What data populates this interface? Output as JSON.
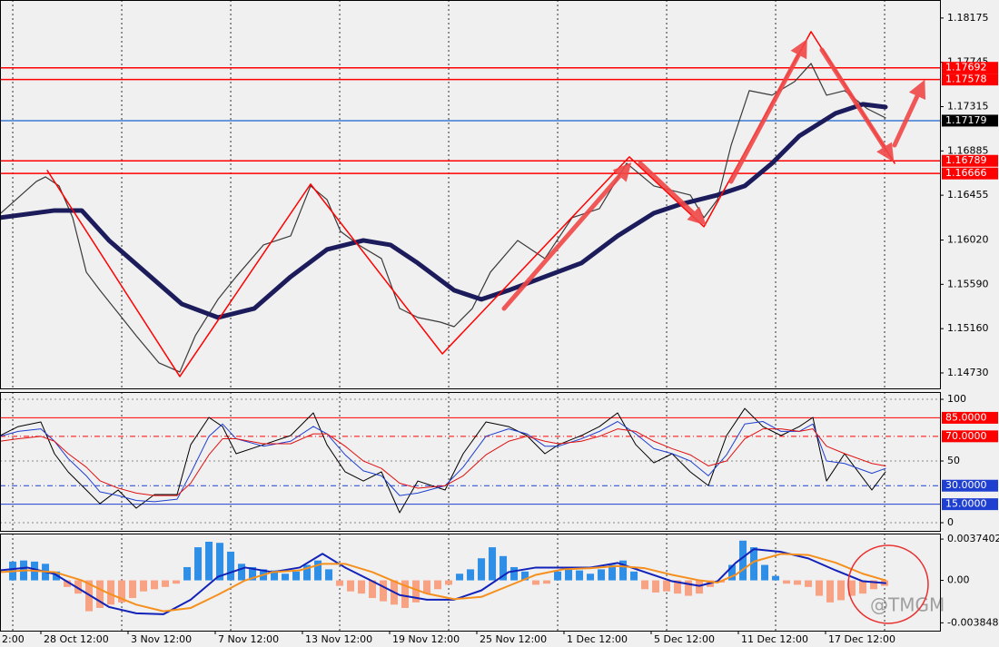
{
  "chart_data": [
    {
      "type": "line",
      "xlim": [
        -1.17,
        85.08
      ],
      "ylim": [
        1.1458,
        1.1835
      ],
      "xgrid": [
        0,
        10,
        20,
        30,
        40,
        50,
        60,
        70,
        80
      ],
      "yticks": [
        1.18175,
        1.17745,
        1.17315,
        1.16885,
        1.16455,
        {
          "value": 1.1602,
          "label": "1.16020"
        },
        {
          "value": 1.1559,
          "label": "1.15590"
        },
        {
          "value": 1.1516,
          "label": "1.15160"
        },
        {
          "value": 1.1473,
          "label": "1.14730"
        }
      ],
      "levels": [
        {
          "value": 1.17692,
          "color": "#ff0000",
          "label_color": "#ff0000"
        },
        {
          "value": 1.17578,
          "color": "#ff0000",
          "label_color": "#ff0000"
        },
        {
          "value": 1.17179,
          "color": "#3a7bd5",
          "label_color": "#000000"
        },
        {
          "value": 1.16789,
          "color": "#ff0000",
          "label_color": "#ff0000"
        },
        {
          "value": 1.16666,
          "color": "#ff0000",
          "label_color": "#ff0000"
        }
      ],
      "series": [
        {
          "color": "#3a3a3a",
          "width": 1.2,
          "x": [
            -1.1,
            2.17,
            3,
            4.25,
            5.5,
            6.75,
            8,
            9.67,
            11.33,
            13.42,
            15.33,
            16.75,
            18.83,
            20.5,
            23,
            25.5,
            27.33,
            28.83,
            30.08,
            31.75,
            33.83,
            35.5,
            37.17,
            39.25,
            40.5,
            42.17,
            43.83,
            46.33,
            48.83,
            51.33,
            53.83,
            56.33,
            58.83,
            60.5,
            62.17,
            63.42,
            64.67,
            65.92,
            67.58,
            69.67,
            71.75,
            73.25,
            74.67,
            76.33,
            78.42,
            80.08
          ],
          "values": [
            1.16281,
            1.16589,
            1.16633,
            1.16545,
            1.16237,
            1.15708,
            1.15532,
            1.15312,
            1.15091,
            1.14827,
            1.14739,
            1.15091,
            1.15444,
            1.15664,
            1.15972,
            1.1606,
            1.16545,
            1.16413,
            1.16104,
            1.15972,
            1.1584,
            1.15356,
            1.15268,
            1.15223,
            1.15179,
            1.15356,
            1.15708,
            1.16016,
            1.1584,
            1.16237,
            1.16325,
            1.16765,
            1.16545,
            1.16501,
            1.16457,
            1.16237,
            1.16413,
            1.16941,
            1.1747,
            1.17426,
            1.17558,
            1.17734,
            1.17426,
            1.1747,
            1.17294,
            1.17206
          ]
        },
        {
          "color": "#1c1c5c",
          "width": 5,
          "x": [
            -1.17,
            3.83,
            6.33,
            8.83,
            12.17,
            15.5,
            18.83,
            22.17,
            25.5,
            28.83,
            32.17,
            34.67,
            37.17,
            40.5,
            43,
            45.5,
            48.83,
            52.17,
            55.5,
            58.83,
            61.33,
            64.67,
            67.17,
            69.67,
            72.17,
            75.5,
            78,
            80.08
          ],
          "values": [
            1.16237,
            1.16307,
            1.16307,
            1.16016,
            1.15708,
            1.154,
            1.15268,
            1.15356,
            1.15664,
            1.15928,
            1.16016,
            1.15972,
            1.15796,
            1.15532,
            1.15444,
            1.15532,
            1.15664,
            1.15796,
            1.1606,
            1.16281,
            1.16369,
            1.16457,
            1.16545,
            1.16765,
            1.1703,
            1.1725,
            1.17338,
            1.17311
          ]
        },
        {
          "color": "#ff0000",
          "width": 1.5,
          "x": [
            3.17,
            15.33,
            27.33,
            39.42,
            56.58,
            63.42,
            73.25,
            80.92
          ],
          "values": [
            1.16695,
            1.14695,
            1.16563,
            1.14915,
            1.16827,
            1.16149,
            1.18043,
            1.16765
          ]
        }
      ]
    },
    {
      "type": "line",
      "xlim": [
        -1.17,
        85.08
      ],
      "ylim": [
        -6.6,
        105.9
      ],
      "yticks": [
        100,
        50,
        0
      ],
      "levels": [
        {
          "value": 85,
          "label": "85.0000",
          "color": "#ff0000",
          "dash": "none"
        },
        {
          "value": 70,
          "label": "70.0000",
          "color": "#ff0000",
          "dash": "6 3 1 3"
        },
        {
          "value": 30,
          "label": "30.0000",
          "color": "#1f3fd0",
          "dash": "6 3 1 3"
        },
        {
          "value": 15,
          "label": "15.0000",
          "color": "#1f3fd0",
          "dash": "none"
        }
      ],
      "series": [
        {
          "color": "#000000",
          "width": 1,
          "x": [
            -1.17,
            0.5,
            2.58,
            3.83,
            5.08,
            6.75,
            8,
            9.67,
            11.33,
            13,
            15.08,
            16.33,
            18,
            19.25,
            20.5,
            23,
            25.5,
            27.58,
            28.83,
            30.5,
            32.17,
            33.83,
            35.5,
            37.17,
            39.67,
            41.33,
            43.42,
            45.5,
            47.17,
            48.83,
            50.08,
            52.17,
            53.83,
            55.5,
            57.17,
            58.83,
            60.5,
            62.17,
            63.83,
            65.5,
            67.17,
            68.83,
            70.5,
            72.17,
            73.42,
            74.67,
            76.33,
            78.83,
            80.08
          ],
          "values": [
            70.6,
            77.9,
            81.6,
            55.9,
            41.2,
            26.5,
            15.4,
            26.5,
            11.8,
            22.8,
            22.8,
            63.2,
            85.3,
            77.9,
            55.9,
            63.2,
            70.6,
            89,
            63.2,
            41.2,
            33.8,
            41.2,
            8.1,
            33.8,
            26.5,
            55.9,
            81.6,
            77.9,
            70.6,
            55.9,
            63.2,
            70.6,
            77.9,
            89,
            63.2,
            48.5,
            55.9,
            41.2,
            30.1,
            70.6,
            92.6,
            77.9,
            70.6,
            77.9,
            85.3,
            33.8,
            55.9,
            26.5,
            41.2
          ]
        },
        {
          "color": "#1f3fd0",
          "width": 1,
          "x": [
            -1.17,
            0.5,
            2.58,
            3.83,
            5.08,
            6.75,
            8,
            9.67,
            11.33,
            13,
            15.08,
            16.33,
            18,
            19.25,
            20.5,
            23,
            25.5,
            27.58,
            28.83,
            30.5,
            32.17,
            33.83,
            35.5,
            37.17,
            39.67,
            41.33,
            43.42,
            45.5,
            47.17,
            48.83,
            50.08,
            52.17,
            53.83,
            55.5,
            57.17,
            58.83,
            60.5,
            62.17,
            63.83,
            65.5,
            67.17,
            68.83,
            70.5,
            72.17,
            73.42,
            74.67,
            76.33,
            78.83,
            80.08
          ],
          "values": [
            70,
            74,
            76,
            66,
            52,
            38,
            25,
            22,
            18,
            17,
            19,
            40,
            70,
            80,
            68,
            62,
            66,
            78,
            72,
            55,
            42,
            38,
            22,
            24,
            30,
            45,
            70,
            76,
            72,
            62,
            62,
            68,
            74,
            82,
            72,
            60,
            56,
            50,
            38,
            55,
            80,
            82,
            74,
            74,
            80,
            50,
            48,
            40,
            44
          ]
        },
        {
          "color": "#e01010",
          "width": 1,
          "x": [
            -1.17,
            0.5,
            2.58,
            3.83,
            5.08,
            6.75,
            8,
            9.67,
            11.33,
            13,
            15.08,
            16.33,
            18,
            19.25,
            20.5,
            23,
            25.5,
            27.58,
            28.83,
            30.5,
            32.17,
            33.83,
            35.5,
            37.17,
            39.67,
            41.33,
            43.42,
            45.5,
            47.17,
            48.83,
            50.08,
            52.17,
            53.83,
            55.5,
            57.17,
            58.83,
            60.5,
            62.17,
            63.83,
            65.5,
            67.17,
            68.83,
            70.5,
            72.17,
            73.42,
            74.67,
            76.33,
            78.83,
            80.08
          ],
          "values": [
            66,
            68,
            70,
            66,
            56,
            45,
            34,
            28,
            24,
            22,
            22,
            32,
            55,
            68,
            68,
            64,
            64,
            72,
            72,
            62,
            50,
            44,
            32,
            28,
            30,
            38,
            55,
            66,
            70,
            66,
            64,
            66,
            70,
            76,
            74,
            66,
            60,
            55,
            46,
            50,
            68,
            76,
            76,
            74,
            76,
            62,
            56,
            48,
            46
          ]
        }
      ]
    },
    {
      "type": "bar",
      "xlim": [
        -1.17,
        85.08
      ],
      "ylim": [
        -0.00456,
        0.00424
      ],
      "yticks": [
        0.0037402,
        {
          "value": 0,
          "label": "0.00"
        },
        -0.0038485
      ],
      "xticks": [
        {
          "value": -5.42,
          "label": "2:00"
        },
        {
          "value": 2.58,
          "label": "28 Oct 12:00"
        },
        {
          "value": 10.58,
          "label": "3 Nov 12:00"
        },
        {
          "value": 18.58,
          "label": "7 Nov 12:00"
        },
        {
          "value": 26.58,
          "label": "13 Nov 12:00"
        },
        {
          "value": 34.58,
          "label": "19 Nov 12:00"
        },
        {
          "value": 42.58,
          "label": "25 Nov 12:00"
        },
        {
          "value": 50.58,
          "label": "1 Dec 12:00"
        },
        {
          "value": 58.58,
          "label": "5 Dec 12:00"
        },
        {
          "value": 66.58,
          "label": "11 Dec 12:00"
        },
        {
          "value": 74.58,
          "label": "17 Dec 12:00"
        }
      ],
      "color": "#2f8ee6",
      "negative_color": "#f7a383",
      "x": [
        0,
        1,
        2,
        3,
        4,
        5,
        6,
        7,
        8,
        9,
        10,
        11,
        12,
        13,
        14,
        15,
        16,
        17,
        18,
        19,
        20,
        21,
        22,
        23,
        24,
        25,
        26,
        27,
        28,
        29,
        30,
        31,
        32,
        33,
        34,
        35,
        36,
        37,
        38,
        39,
        40,
        41,
        42,
        43,
        44,
        45,
        46,
        47,
        48,
        49,
        50,
        51,
        52,
        53,
        54,
        55,
        56,
        57,
        58,
        59,
        60,
        61,
        62,
        63,
        64,
        65,
        66,
        67,
        68,
        69,
        70,
        71,
        72,
        73,
        74,
        75,
        76,
        77,
        78,
        79,
        80
      ],
      "values": [
        0.0017,
        0.0018,
        0.0017,
        0.0015,
        0.0008,
        -0.0006,
        -0.0012,
        -0.0028,
        -0.0025,
        -0.0022,
        -0.002,
        -0.0016,
        -0.001,
        -0.0008,
        -0.0006,
        -0.0003,
        0.0012,
        0.003,
        0.0035,
        0.0034,
        0.0026,
        0.0015,
        0.0012,
        0.001,
        0.0009,
        0.0006,
        0.0008,
        0.0014,
        0.0018,
        0.001,
        -0.0005,
        -0.001,
        -0.0012,
        -0.0016,
        -0.0019,
        -0.0022,
        -0.0025,
        -0.002,
        -0.0012,
        -0.0008,
        -0.0004,
        0.0006,
        0.001,
        0.002,
        0.003,
        0.0022,
        0.0012,
        0.0008,
        -0.0004,
        -0.0003,
        0.0008,
        0.0012,
        0.0009,
        0.0006,
        0.001,
        0.0014,
        0.0018,
        0.0008,
        -0.0008,
        -0.0011,
        -0.001,
        -0.0012,
        -0.0014,
        -0.0012,
        -0.0006,
        -0.0002,
        0.0014,
        0.0036,
        0.003,
        0.0014,
        0.0004,
        -0.0003,
        -0.0004,
        -0.0006,
        -0.0014,
        -0.002,
        -0.0018,
        -0.0014,
        -0.0012,
        -0.0008,
        -0.0005
      ],
      "lines": [
        {
          "color": "#1222b8",
          "width": 2,
          "x": [
            -1.17,
            1.33,
            3.83,
            6.33,
            8.83,
            11.33,
            13.83,
            16.33,
            18.83,
            21.33,
            23.83,
            26.33,
            28.42,
            30.5,
            33,
            35.5,
            38,
            40.5,
            43,
            45.5,
            48,
            50.5,
            53,
            55.5,
            58,
            60.5,
            63,
            64.67,
            66.33,
            68,
            70.5,
            73,
            75.5,
            78,
            80.08
          ],
          "values": [
            0.00091,
            0.00116,
            0.00058,
            -0.00091,
            -0.00241,
            -0.00299,
            -0.00307,
            -0.00175,
            0.00033,
            0.00116,
            0.00075,
            0.00116,
            0.00241,
            0.00116,
            -8e-05,
            -0.00133,
            -0.00175,
            -0.00175,
            -0.00091,
            0.00075,
            0.00116,
            0.00116,
            0.00116,
            0.00158,
            0.00075,
            -8e-05,
            -0.0005,
            -8e-05,
            0.00158,
            0.00283,
            0.00258,
            0.00199,
            0.00091,
            -8e-05,
            -0.00025
          ]
        },
        {
          "color": "#f5901e",
          "width": 2,
          "x": [
            -1.17,
            1.33,
            3.83,
            6.33,
            8.83,
            11.33,
            13.83,
            16.33,
            18.83,
            21.33,
            23.83,
            26.33,
            28.42,
            30.5,
            33,
            35.5,
            38,
            40.5,
            43,
            45.5,
            48,
            50.5,
            53,
            55.5,
            58,
            60.5,
            63,
            64.67,
            66.33,
            68,
            70.5,
            73,
            75.5,
            78,
            80.08
          ],
          "values": [
            0.00075,
            0.00091,
            0.00075,
            0,
            -0.0012,
            -0.0022,
            -0.0028,
            -0.0025,
            -0.0013,
            0,
            0.00075,
            0.00091,
            0.0015,
            0.0015,
            0.00075,
            -0.0003,
            -0.0012,
            -0.0017,
            -0.0015,
            -0.0005,
            0.0005,
            0.001,
            0.0011,
            0.0013,
            0.0011,
            0.0005,
            0,
            -0.0002,
            0.0005,
            0.0017,
            0.0024,
            0.0023,
            0.0016,
            0.0006,
            0
          ]
        }
      ],
      "watermark": "@TMGM"
    }
  ]
}
